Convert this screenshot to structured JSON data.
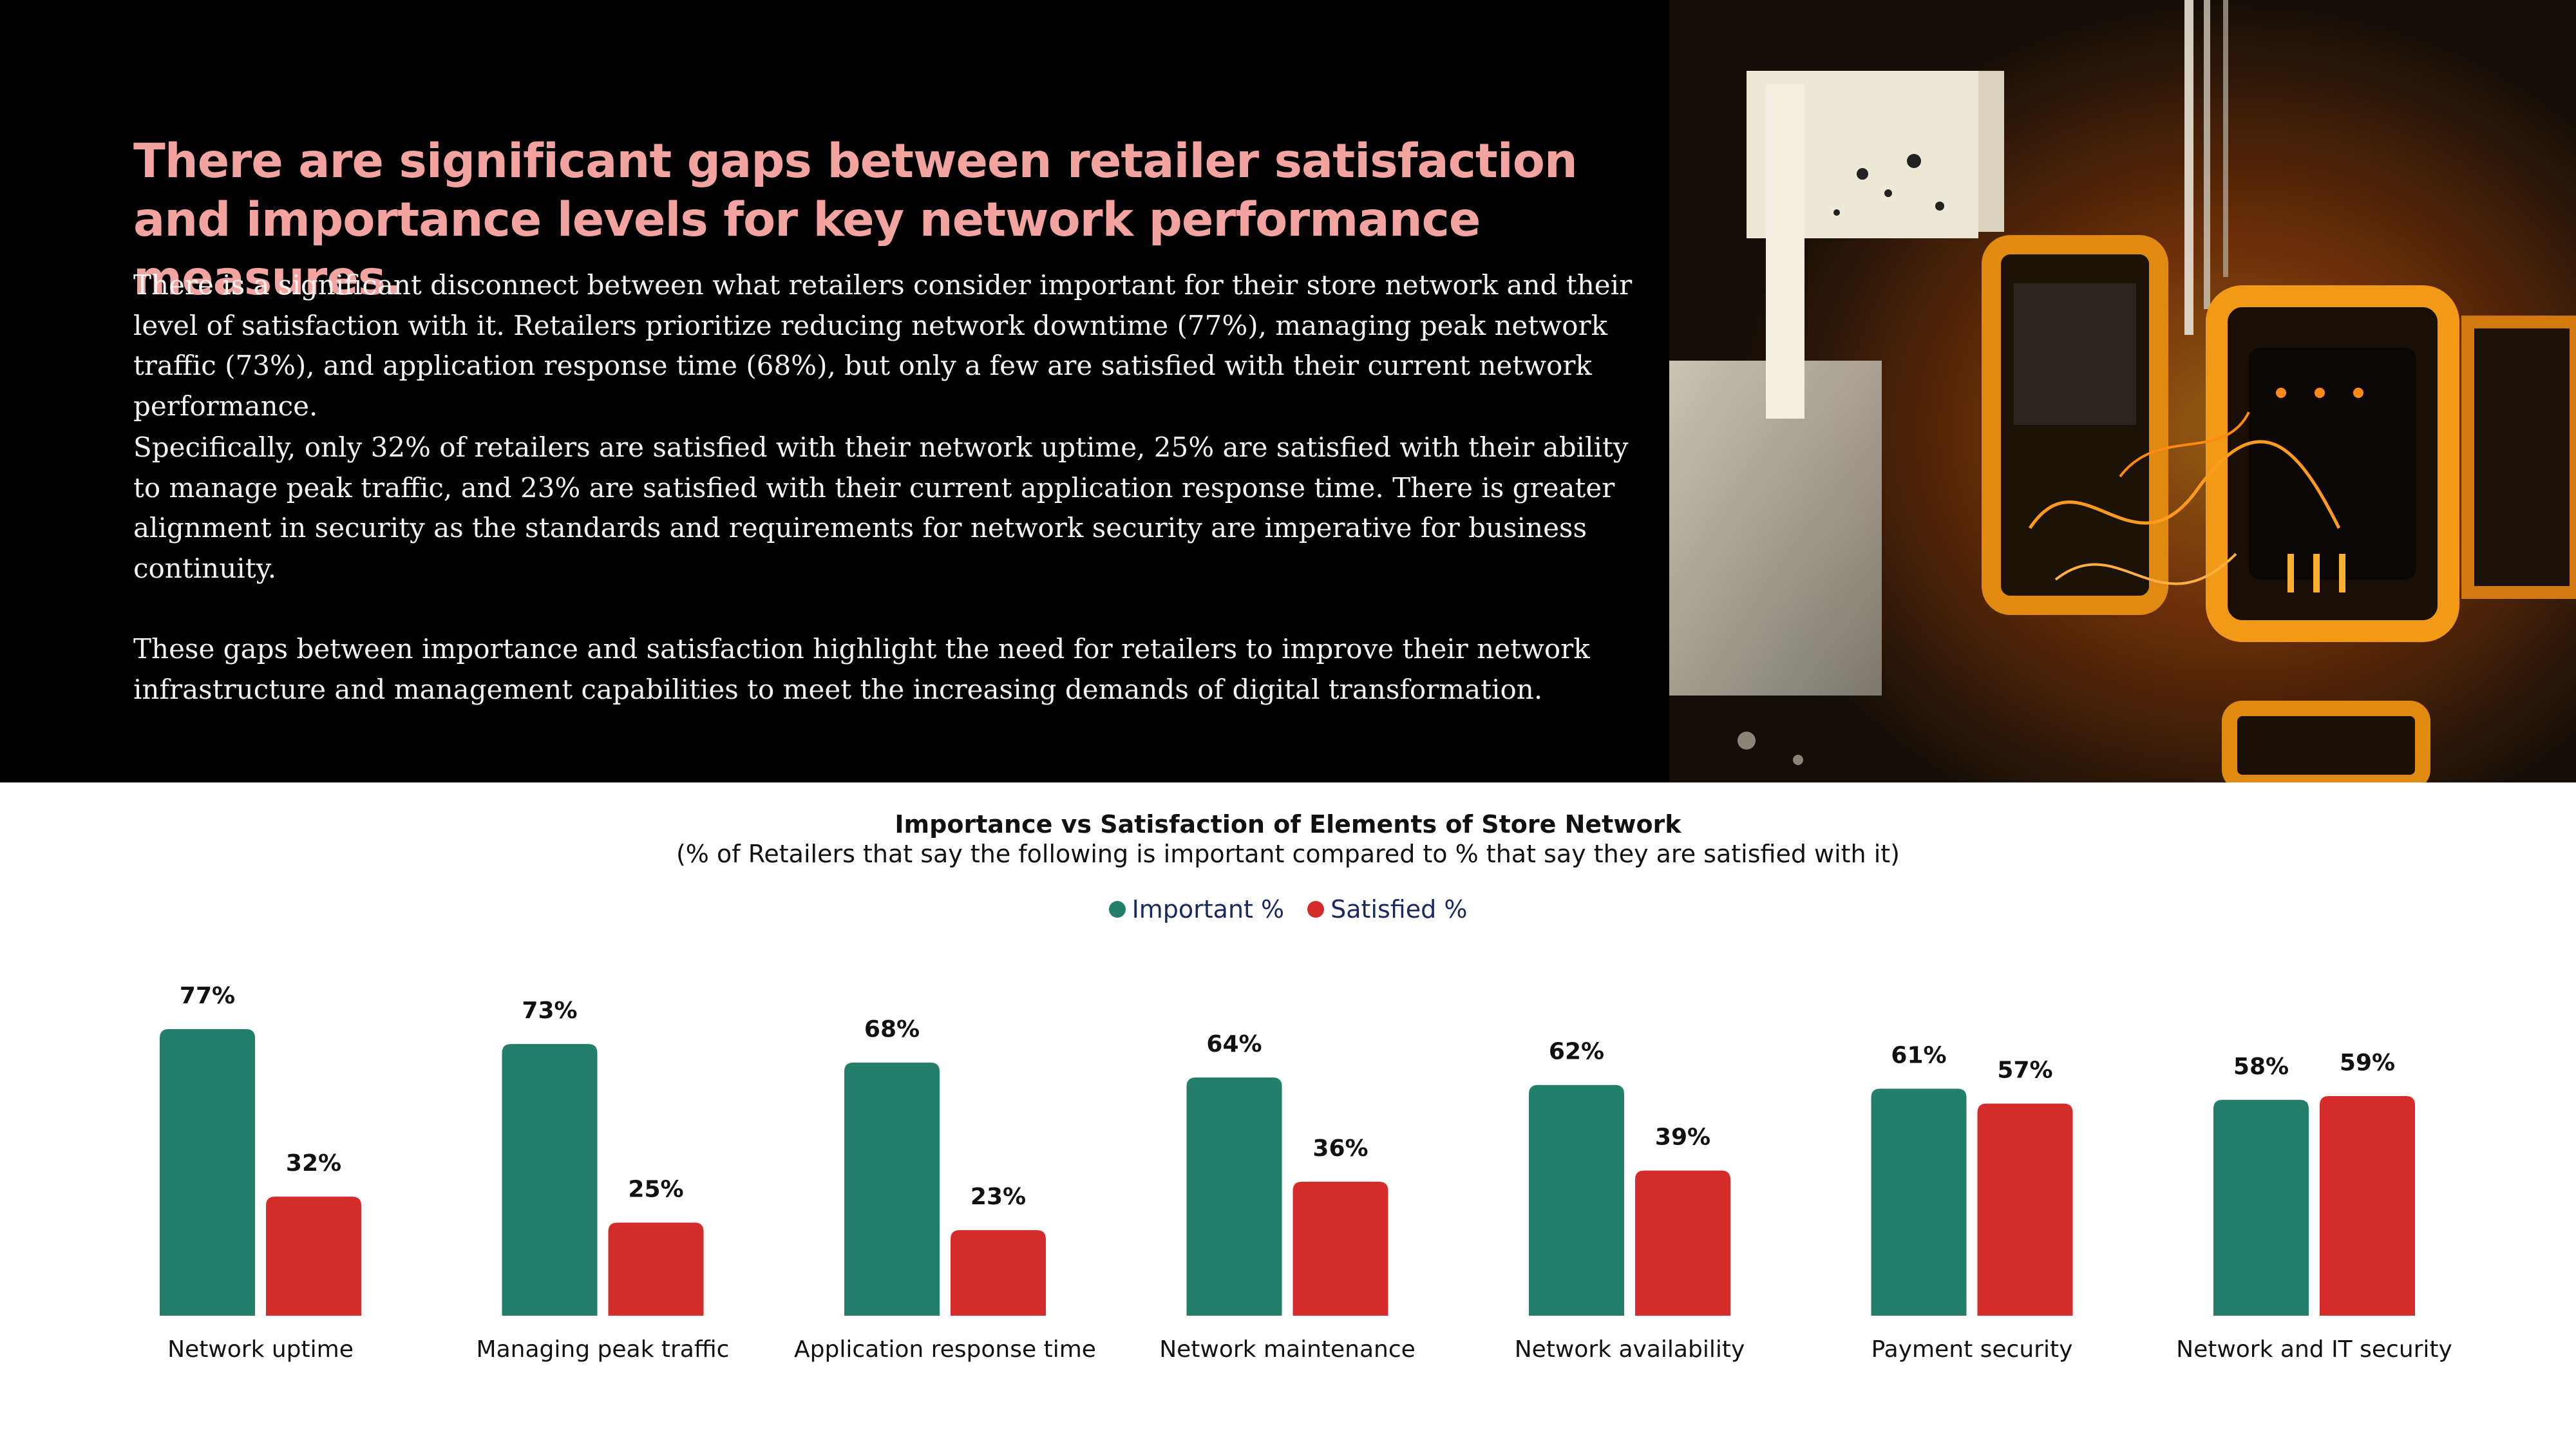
{
  "headline": "There are significant gaps between retailer satisfaction and importance levels for key network performance measures.",
  "paragraphs": [
    "There is a significant disconnect between what retailers consider important for their store network and their level of satisfaction with it. Retailers prioritize reducing network downtime (77%), managing peak network traffic (73%), and application response time (68%), but only a few are satisfied with their current network performance.",
    "Specifically, only 32% of retailers are satisfied with their network uptime, 25% are satisfied with their ability to manage peak traffic, and 23% are satisfied with their current application response time. There is greater alignment in security as the standards and requirements for network security are imperative for business continuity.",
    "These gaps between importance and satisfaction highlight the need for retailers to improve their network infrastructure and management capabilities to meet the increasing demands of digital transformation."
  ],
  "colors": {
    "headline": "#f4a4a0",
    "important": "#237e6a",
    "satisfied": "#d42b2b",
    "legend_text": "#1a2a5e"
  },
  "chart_data": {
    "type": "bar",
    "title": "Importance vs Satisfaction of Elements of Store Network",
    "subtitle": "(% of Retailers that say the following is important compared to % that say they are satisfied with it)",
    "categories": [
      "Network uptime",
      "Managing peak traffic",
      "Application response time",
      "Network maintenance",
      "Network availability",
      "Payment security",
      "Network and IT security"
    ],
    "series": [
      {
        "name": "Important %",
        "values": [
          77,
          73,
          68,
          64,
          62,
          61,
          58
        ],
        "labels": [
          "77%",
          "73%",
          "68%",
          "64%",
          "62%",
          "61%",
          "58%"
        ],
        "color": "#237e6a"
      },
      {
        "name": "Satisfied %",
        "values": [
          32,
          25,
          23,
          36,
          39,
          57,
          59
        ],
        "labels": [
          "32%",
          "25%",
          "23%",
          "36%",
          "39%",
          "57%",
          "59%"
        ],
        "color": "#d42b2b"
      }
    ],
    "ylim": [
      0,
      77
    ],
    "legend": "top-center",
    "grid": false
  }
}
